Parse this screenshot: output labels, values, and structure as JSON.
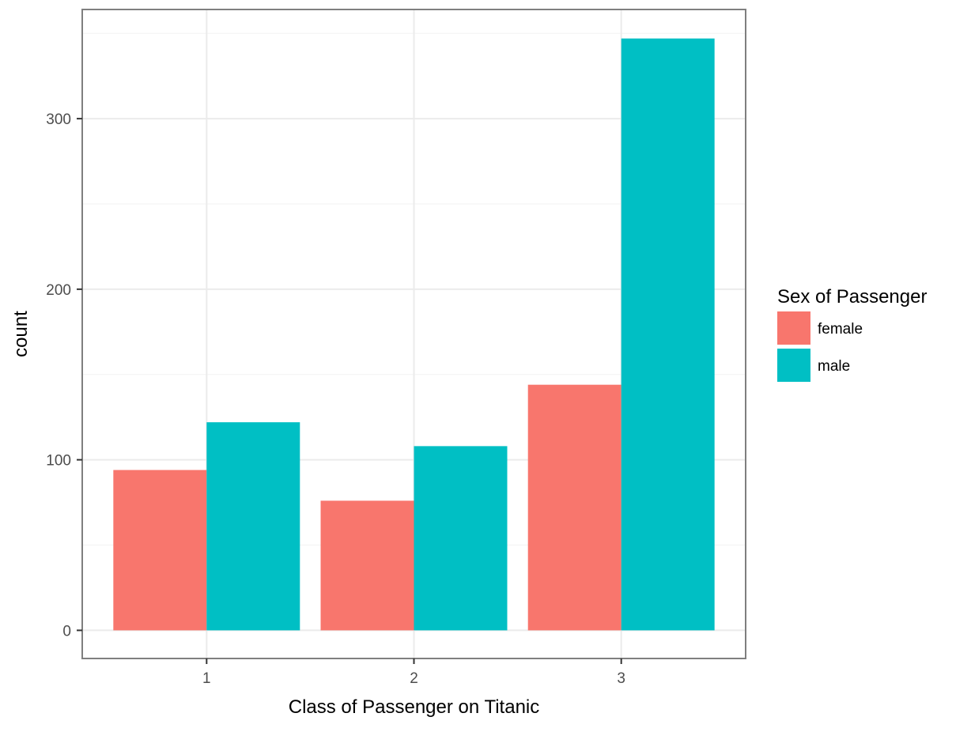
{
  "chart_data": {
    "type": "bar",
    "xlabel": "Class of Passenger on Titanic",
    "ylabel": "count",
    "categories": [
      "1",
      "2",
      "3"
    ],
    "series": [
      {
        "name": "female",
        "values": [
          94,
          76,
          144
        ],
        "color": "#F8766D"
      },
      {
        "name": "male",
        "values": [
          122,
          108,
          347
        ],
        "color": "#00BFC4"
      }
    ],
    "ylim": [
      -16.5,
      364
    ],
    "yticks": [
      0,
      100,
      200,
      300
    ],
    "ytick_labels": [
      "0",
      "100",
      "200",
      "300"
    ],
    "legend": {
      "title": "Sex of Passenger",
      "position": "right"
    },
    "grid": true
  }
}
